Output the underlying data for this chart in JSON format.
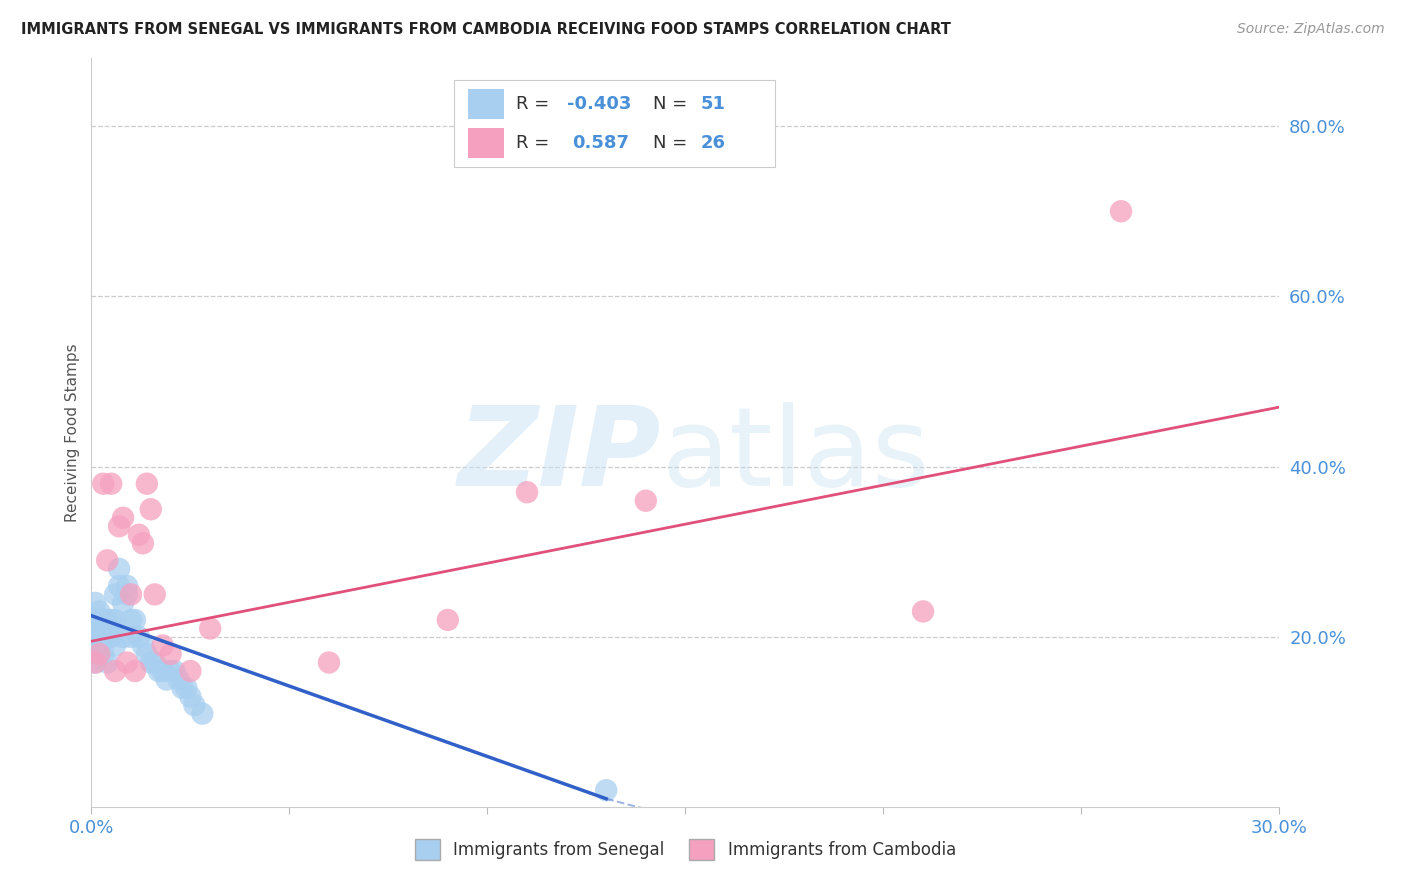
{
  "title": "IMMIGRANTS FROM SENEGAL VS IMMIGRANTS FROM CAMBODIA RECEIVING FOOD STAMPS CORRELATION CHART",
  "source": "Source: ZipAtlas.com",
  "ylabel": "Receiving Food Stamps",
  "xlim": [
    0.0,
    0.3
  ],
  "ylim": [
    0.0,
    0.88
  ],
  "xtick_positions": [
    0.0,
    0.05,
    0.1,
    0.15,
    0.2,
    0.25,
    0.3
  ],
  "xticklabels": [
    "0.0%",
    "",
    "",
    "",
    "",
    "",
    "30.0%"
  ],
  "yticks_right": [
    0.2,
    0.4,
    0.6,
    0.8
  ],
  "ytick_right_labels": [
    "20.0%",
    "40.0%",
    "60.0%",
    "80.0%"
  ],
  "senegal_color": "#a8cff0",
  "cambodia_color": "#f5a0be",
  "senegal_line_color": "#3060c8",
  "cambodia_line_color": "#e0507a",
  "axis_color": "#4a90d9",
  "legend_text_color": "#4a90d9",
  "senegal_x": [
    0.001,
    0.001,
    0.001,
    0.001,
    0.001,
    0.002,
    0.002,
    0.002,
    0.002,
    0.002,
    0.003,
    0.003,
    0.003,
    0.003,
    0.004,
    0.004,
    0.004,
    0.004,
    0.005,
    0.005,
    0.005,
    0.006,
    0.006,
    0.006,
    0.007,
    0.007,
    0.008,
    0.008,
    0.009,
    0.009,
    0.01,
    0.01,
    0.011,
    0.012,
    0.013,
    0.014,
    0.015,
    0.016,
    0.017,
    0.018,
    0.019,
    0.02,
    0.021,
    0.022,
    0.023,
    0.024,
    0.025,
    0.026,
    0.028,
    0.13
  ],
  "senegal_y": [
    0.22,
    0.2,
    0.18,
    0.24,
    0.17,
    0.23,
    0.22,
    0.19,
    0.18,
    0.21,
    0.22,
    0.21,
    0.18,
    0.2,
    0.21,
    0.2,
    0.17,
    0.22,
    0.22,
    0.21,
    0.2,
    0.25,
    0.22,
    0.19,
    0.28,
    0.26,
    0.24,
    0.2,
    0.26,
    0.25,
    0.22,
    0.2,
    0.22,
    0.2,
    0.19,
    0.18,
    0.17,
    0.17,
    0.16,
    0.16,
    0.15,
    0.16,
    0.16,
    0.15,
    0.14,
    0.14,
    0.13,
    0.12,
    0.11,
    0.02
  ],
  "cambodia_x": [
    0.001,
    0.002,
    0.003,
    0.004,
    0.005,
    0.006,
    0.007,
    0.008,
    0.009,
    0.01,
    0.011,
    0.012,
    0.013,
    0.014,
    0.015,
    0.016,
    0.018,
    0.02,
    0.025,
    0.03,
    0.06,
    0.09,
    0.11,
    0.14,
    0.21,
    0.26
  ],
  "cambodia_y": [
    0.17,
    0.18,
    0.38,
    0.29,
    0.38,
    0.16,
    0.33,
    0.34,
    0.17,
    0.25,
    0.16,
    0.32,
    0.31,
    0.38,
    0.35,
    0.25,
    0.19,
    0.18,
    0.16,
    0.21,
    0.17,
    0.22,
    0.37,
    0.36,
    0.23,
    0.7
  ],
  "senegal_line_x": [
    0.0,
    0.13
  ],
  "senegal_line_y": [
    0.225,
    0.01
  ],
  "cambodia_line_x": [
    0.0,
    0.3
  ],
  "cambodia_line_y": [
    0.195,
    0.47
  ],
  "watermark_zip": "ZIP",
  "watermark_atlas": "atlas"
}
